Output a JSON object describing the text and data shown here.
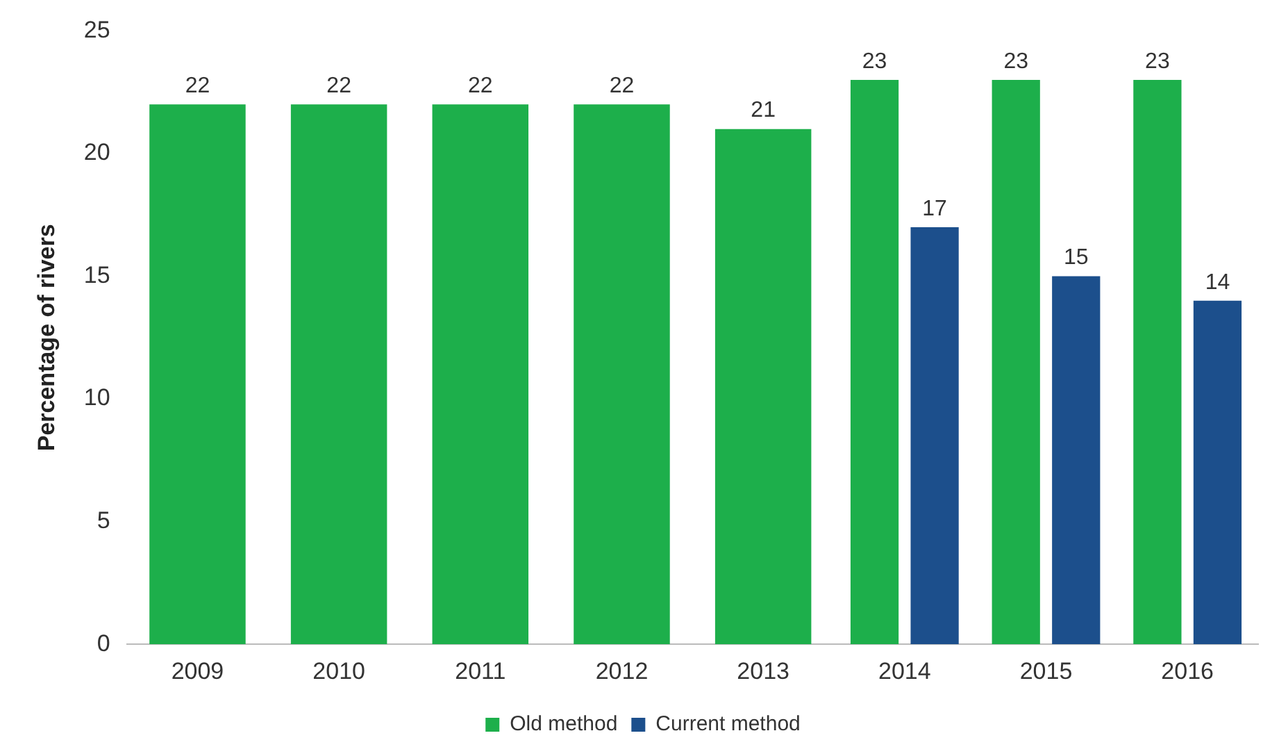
{
  "chart_data": {
    "type": "bar",
    "ylabel": "Percentage of rivers",
    "categories": [
      "2009",
      "2010",
      "2011",
      "2012",
      "2013",
      "2014",
      "2015",
      "2016"
    ],
    "series": [
      {
        "name": "Old method",
        "color": "#1daf4b",
        "values": [
          22,
          22,
          22,
          22,
          21,
          23,
          23,
          23
        ]
      },
      {
        "name": "Current method",
        "color": "#1c4f8c",
        "values": [
          null,
          null,
          null,
          null,
          null,
          17,
          15,
          14
        ]
      }
    ],
    "ylim": [
      0,
      25
    ],
    "yticks": [
      0,
      5,
      10,
      15,
      20,
      25
    ],
    "data_labels": true,
    "legend": "bottom"
  }
}
